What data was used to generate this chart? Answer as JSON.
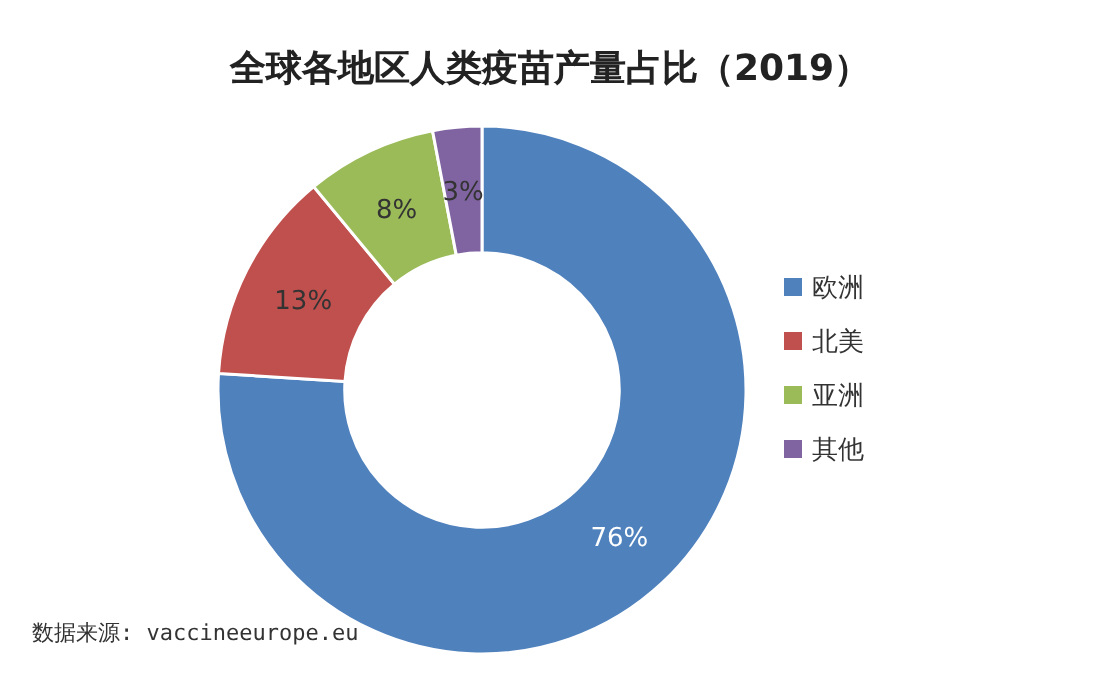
{
  "chart_data": {
    "type": "donut",
    "title": "全球各地区人类疫苗产量占比（2019）",
    "categories": [
      "欧洲",
      "北美",
      "亚洲",
      "其他"
    ],
    "values": [
      76,
      13,
      8,
      3
    ],
    "value_labels": [
      "76%",
      "13%",
      "8%",
      "3%"
    ],
    "colors": [
      "#4f81bd",
      "#c0504d",
      "#9bbb59",
      "#8064a2"
    ],
    "legend": "right",
    "annotations": [
      "数据来源: vaccineeurope.eu"
    ]
  }
}
